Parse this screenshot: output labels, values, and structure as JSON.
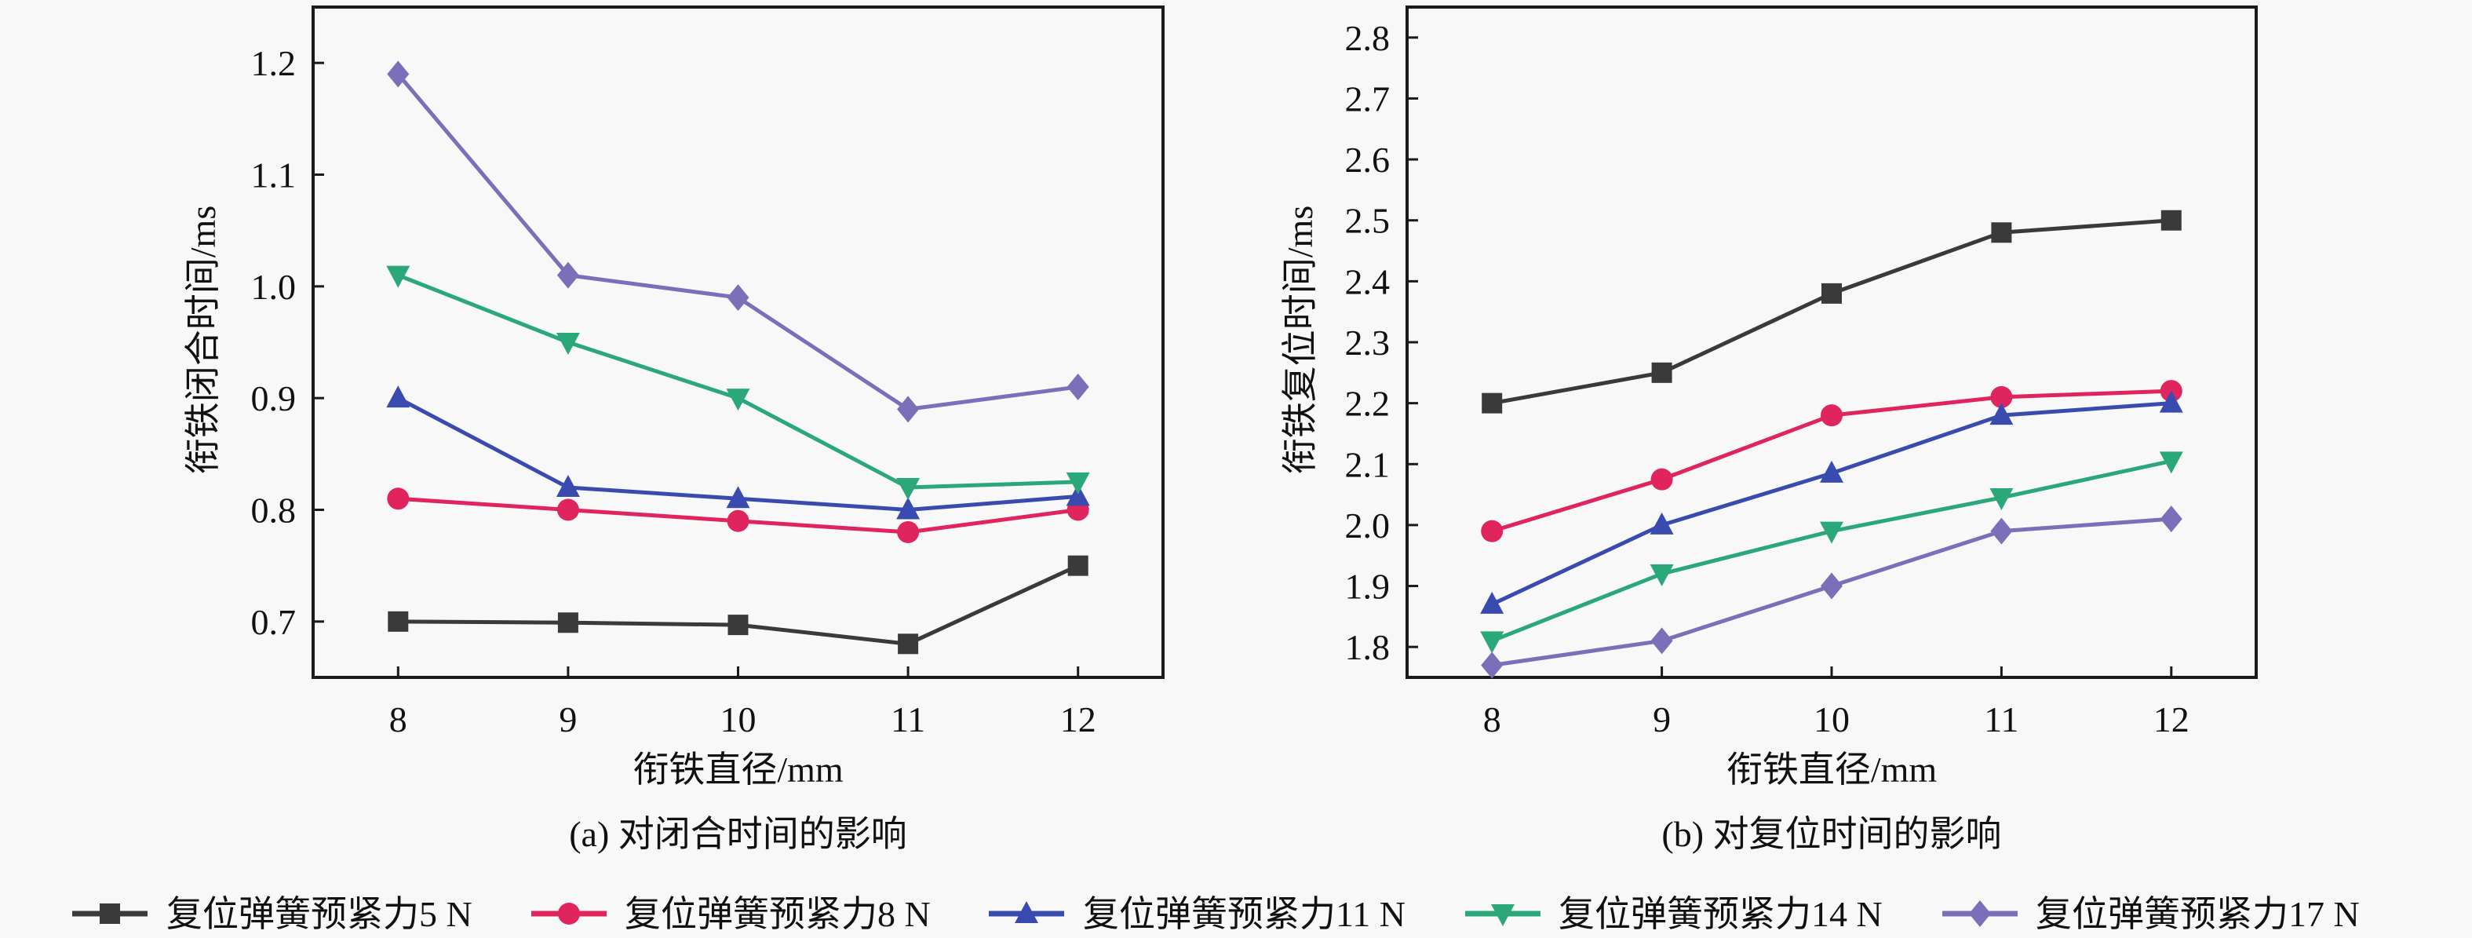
{
  "figure": {
    "legend": {
      "placement": "bottom-center",
      "entries": [
        {
          "label": "复位弹簧预紧力5 N",
          "color": "#3a3a3a",
          "marker": "square"
        },
        {
          "label": "复位弹簧预紧力8 N",
          "color": "#e0245e",
          "marker": "circle"
        },
        {
          "label": "复位弹簧预紧力11 N",
          "color": "#3a4bb0",
          "marker": "triangle-up"
        },
        {
          "label": "复位弹簧预紧力14 N",
          "color": "#2aa87a",
          "marker": "triangle-down"
        },
        {
          "label": "复位弹簧预紧力17 N",
          "color": "#7a6fb8",
          "marker": "diamond"
        }
      ]
    }
  },
  "chart_data": [
    {
      "type": "line",
      "caption": "(a) 对闭合时间的影响",
      "title": "",
      "xlabel": "衔铁直径/mm",
      "ylabel": "衔铁闭合时间/ms",
      "x": [
        8,
        9,
        10,
        11,
        12
      ],
      "xticks": [
        "8",
        "9",
        "10",
        "11",
        "12"
      ],
      "yticks": [
        "0.7",
        "0.8",
        "0.9",
        "1.0",
        "1.1",
        "1.2"
      ],
      "xlim": [
        7.5,
        12.5
      ],
      "ylim": [
        0.65,
        1.25
      ],
      "grid": false,
      "series": [
        {
          "name": "复位弹簧预紧力5 N",
          "values": [
            0.7,
            0.699,
            0.697,
            0.68,
            0.75
          ]
        },
        {
          "name": "复位弹簧预紧力8 N",
          "values": [
            0.81,
            0.8,
            0.79,
            0.78,
            0.8
          ]
        },
        {
          "name": "复位弹簧预紧力11 N",
          "values": [
            0.9,
            0.82,
            0.81,
            0.8,
            0.812
          ]
        },
        {
          "name": "复位弹簧预紧力14 N",
          "values": [
            1.01,
            0.95,
            0.9,
            0.82,
            0.825
          ]
        },
        {
          "name": "复位弹簧预紧力17 N",
          "values": [
            1.19,
            1.01,
            0.99,
            0.89,
            0.91
          ]
        }
      ]
    },
    {
      "type": "line",
      "caption": "(b) 对复位时间的影响",
      "title": "",
      "xlabel": "衔铁直径/mm",
      "ylabel": "衔铁复位时间/ms",
      "x": [
        8,
        9,
        10,
        11,
        12
      ],
      "xticks": [
        "8",
        "9",
        "10",
        "11",
        "12"
      ],
      "yticks": [
        "1.8",
        "1.9",
        "2.0",
        "2.1",
        "2.2",
        "2.3",
        "2.4",
        "2.5",
        "2.6",
        "2.7",
        "2.8"
      ],
      "xlim": [
        7.5,
        12.5
      ],
      "ylim": [
        1.75,
        2.85
      ],
      "grid": false,
      "series": [
        {
          "name": "复位弹簧预紧力5 N",
          "values": [
            2.2,
            2.25,
            2.38,
            2.48,
            2.5
          ]
        },
        {
          "name": "复位弹簧预紧力8 N",
          "values": [
            1.99,
            2.075,
            2.18,
            2.21,
            2.22
          ]
        },
        {
          "name": "复位弹簧预紧力11 N",
          "values": [
            1.87,
            2.0,
            2.085,
            2.18,
            2.2
          ]
        },
        {
          "name": "复位弹簧预紧力14 N",
          "values": [
            1.81,
            1.92,
            1.99,
            2.045,
            2.105
          ]
        },
        {
          "name": "复位弹簧预紧力17 N",
          "values": [
            1.77,
            1.81,
            1.9,
            1.99,
            2.01
          ]
        }
      ]
    }
  ]
}
